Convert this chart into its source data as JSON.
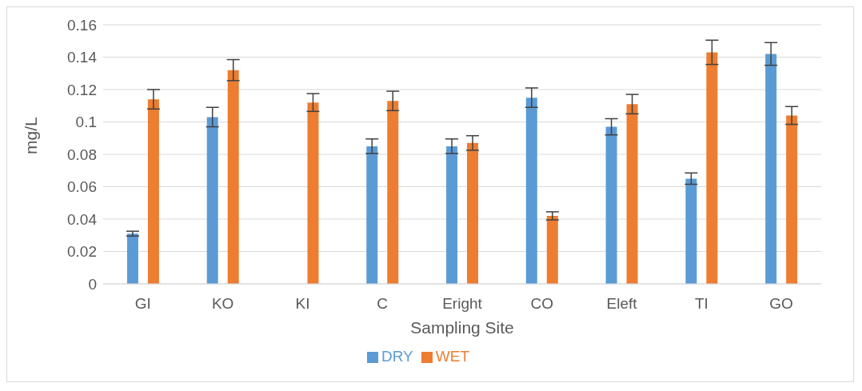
{
  "chart_data": {
    "type": "bar",
    "xlabel": "Sampling Site",
    "ylabel": "mg/L",
    "categories": [
      "GI",
      "KO",
      "KI",
      "C",
      "Eright",
      "CO",
      "Eleft",
      "TI",
      "GO"
    ],
    "series": [
      {
        "name": "DRY",
        "color": "#5b9bd5",
        "values": [
          0.031,
          0.103,
          0,
          0.085,
          0.085,
          0.115,
          0.097,
          0.065,
          0.142
        ],
        "errors": [
          0.0015,
          0.006,
          null,
          0.0045,
          0.0045,
          0.006,
          0.005,
          0.0035,
          0.007
        ]
      },
      {
        "name": "WET",
        "color": "#ed7d31",
        "values": [
          0.114,
          0.132,
          0.112,
          0.113,
          0.087,
          0.042,
          0.111,
          0.143,
          0.104
        ],
        "errors": [
          0.006,
          0.0065,
          0.0055,
          0.006,
          0.0045,
          0.0025,
          0.006,
          0.0075,
          0.0055
        ]
      }
    ],
    "ylim": [
      0,
      0.16
    ],
    "yticks": [
      0,
      0.02,
      0.04,
      0.06,
      0.08,
      0.1,
      0.12,
      0.14,
      0.16
    ],
    "grid": "y",
    "legend": "bottom"
  }
}
